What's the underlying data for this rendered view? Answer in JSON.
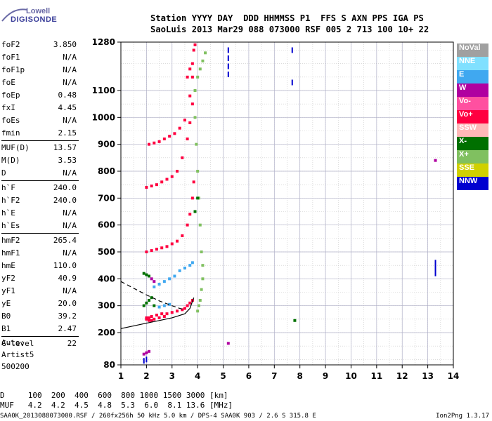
{
  "logo": {
    "line1": "Lowell",
    "line2": "DIGISONDE"
  },
  "header": {
    "line1": "Station YYYY DAY  DDD HHMMSS P1  FFS S AXN PPS IGA PS",
    "line2": "SaoLuis 2013 Mar29 088 073000 RSF 005 2 713 100 10+ 22"
  },
  "params": [
    {
      "label": "foF2",
      "value": "3.850"
    },
    {
      "label": "foF1",
      "value": "N/A"
    },
    {
      "label": "foF1p",
      "value": "N/A"
    },
    {
      "label": "foE",
      "value": "N/A"
    },
    {
      "label": "foEp",
      "value": "0.48"
    },
    {
      "label": "fxI",
      "value": "4.45"
    },
    {
      "label": "foEs",
      "value": "N/A"
    },
    {
      "label": "fmin",
      "value": "2.15"
    },
    {
      "label": "MUF(D)",
      "value": "13.57"
    },
    {
      "label": "M(D)",
      "value": "3.53"
    },
    {
      "label": "D",
      "value": "N/A"
    },
    {
      "label": "h`F",
      "value": "240.0"
    },
    {
      "label": "h`F2",
      "value": "240.0"
    },
    {
      "label": "h`E",
      "value": "N/A"
    },
    {
      "label": "h`Es",
      "value": "N/A"
    },
    {
      "label": "hmF2",
      "value": "265.4"
    },
    {
      "label": "hmF1",
      "value": "N/A"
    },
    {
      "label": "hmE",
      "value": "110.0"
    },
    {
      "label": "yF2",
      "value": "40.9"
    },
    {
      "label": "yF1",
      "value": "N/A"
    },
    {
      "label": "yE",
      "value": "20.0"
    },
    {
      "label": "B0",
      "value": "39.2"
    },
    {
      "label": "B1",
      "value": "2.47"
    },
    {
      "label": "C-level",
      "value": "22"
    }
  ],
  "auto": {
    "line1": "Auto:",
    "line2": "Artist5",
    "line3": "500200"
  },
  "legend": [
    {
      "name": "NoVal",
      "color": "#a0a0a0"
    },
    {
      "name": "NNE",
      "color": "#80e0ff"
    },
    {
      "name": "E",
      "color": "#40a8f0"
    },
    {
      "name": "W",
      "color": "#b000a0"
    },
    {
      "name": "Vo-",
      "color": "#ff50a0"
    },
    {
      "name": "Vo+",
      "color": "#ff0040"
    },
    {
      "name": "SSW",
      "color": "#ffb8b8"
    },
    {
      "name": "X-",
      "color": "#007000"
    },
    {
      "name": "X+",
      "color": "#80c060"
    },
    {
      "name": "SSE",
      "color": "#d0d000"
    },
    {
      "name": "NNW",
      "color": "#0000d0"
    }
  ],
  "bottom": {
    "line1": "D     100  200  400  600  800 1000 1500 3000 [km]",
    "line2": "MUF   4.2  4.2  4.5  4.8  5.3  6.0  8.1 13.6 [MHz]"
  },
  "footer": "SAA0K_2013088073000.RSF / 260fx256h 50 kHz 5.0 km / DPS-4 SAA0K 903 / 2.6 S 315.8 E",
  "version": "Ion2Png 1.3.17",
  "chart_data": {
    "type": "scatter",
    "title": "",
    "xlabel": "",
    "ylabel": "",
    "xlim": [
      1,
      14
    ],
    "ylim": [
      80,
      1280
    ],
    "x_ticks": [
      1,
      2,
      3,
      4,
      5,
      6,
      7,
      8,
      9,
      10,
      11,
      12,
      13,
      14
    ],
    "y_ticks": [
      80,
      200,
      300,
      400,
      500,
      600,
      700,
      800,
      900,
      1000,
      1100,
      1280
    ],
    "grid": true,
    "series": [
      {
        "name": "Vo+",
        "color": "#ff0040",
        "x": [
          2.0,
          2.1,
          2.2,
          2.4,
          2.6,
          2.8,
          3.0,
          3.2,
          3.4,
          3.5,
          3.6,
          3.7,
          3.8,
          2.0,
          2.2,
          2.4,
          2.6,
          2.8,
          3.0,
          3.2,
          3.4,
          3.6,
          3.7,
          3.8,
          3.85,
          2.0,
          2.2,
          2.4,
          2.6,
          2.8,
          3.0,
          3.2,
          3.4,
          3.6,
          3.7,
          3.8,
          2.1,
          2.3,
          2.5,
          2.7,
          2.9,
          3.1,
          3.3,
          3.5,
          3.7,
          3.8,
          3.6,
          3.7,
          3.8,
          3.85,
          3.9,
          2.0,
          2.1,
          2.2,
          2.3,
          2.5,
          2.7
        ],
        "y": [
          255,
          255,
          260,
          265,
          270,
          270,
          275,
          280,
          285,
          290,
          300,
          310,
          320,
          500,
          505,
          510,
          515,
          520,
          530,
          540,
          560,
          600,
          640,
          700,
          760,
          740,
          745,
          750,
          760,
          770,
          780,
          800,
          850,
          920,
          980,
          1050,
          900,
          905,
          910,
          920,
          930,
          940,
          960,
          990,
          1080,
          1150,
          1150,
          1180,
          1200,
          1250,
          1270,
          250,
          245,
          245,
          250,
          255,
          260
        ]
      },
      {
        "name": "X+",
        "color": "#80c060",
        "x": [
          4.0,
          4.05,
          4.1,
          4.15,
          4.2,
          4.2,
          4.15,
          4.1,
          4.05,
          4.0,
          3.95,
          3.9,
          3.9,
          4.0,
          4.1,
          4.2,
          4.3
        ],
        "y": [
          280,
          300,
          320,
          360,
          400,
          450,
          500,
          600,
          700,
          800,
          900,
          1000,
          1100,
          1150,
          1180,
          1210,
          1240
        ]
      },
      {
        "name": "X-",
        "color": "#007000",
        "x": [
          1.9,
          2.0,
          2.1,
          2.2,
          2.3,
          1.9,
          2.0,
          2.1,
          3.9,
          4.0,
          7.8
        ],
        "y": [
          300,
          310,
          320,
          330,
          300,
          420,
          415,
          410,
          650,
          700,
          245
        ]
      },
      {
        "name": "E",
        "color": "#40a8f0",
        "x": [
          2.3,
          2.5,
          2.7,
          2.9,
          3.1,
          3.3,
          3.5,
          3.7,
          3.8,
          2.5,
          2.7,
          2.9
        ],
        "y": [
          370,
          380,
          390,
          400,
          410,
          430,
          440,
          450,
          460,
          295,
          300,
          305
        ]
      },
      {
        "name": "W",
        "color": "#b000a0",
        "x": [
          1.9,
          2.0,
          2.1,
          2.2,
          2.3,
          5.2,
          13.3
        ],
        "y": [
          120,
          125,
          130,
          400,
          390,
          160,
          840
        ]
      },
      {
        "name": "NNW",
        "color": "#0000d0",
        "x": [
          5.2,
          5.2,
          5.2,
          5.2,
          7.7,
          7.7,
          13.3,
          13.3,
          13.3,
          1.9,
          2.0
        ],
        "y": [
          1250,
          1220,
          1190,
          1160,
          1250,
          1130,
          460,
          440,
          420,
          95,
          100
        ]
      }
    ],
    "curves": [
      {
        "name": "profile",
        "style": "solid",
        "x": [
          1,
          1.5,
          2.0,
          2.5,
          3.0,
          3.5,
          3.7,
          3.85
        ],
        "y": [
          215,
          225,
          235,
          245,
          255,
          270,
          290,
          330
        ]
      },
      {
        "name": "profile-dashed",
        "style": "dashed",
        "x": [
          1,
          1.5,
          2.0,
          2.5,
          3.0,
          3.3,
          3.5
        ],
        "y": [
          390,
          365,
          340,
          318,
          300,
          290,
          285
        ]
      }
    ]
  }
}
